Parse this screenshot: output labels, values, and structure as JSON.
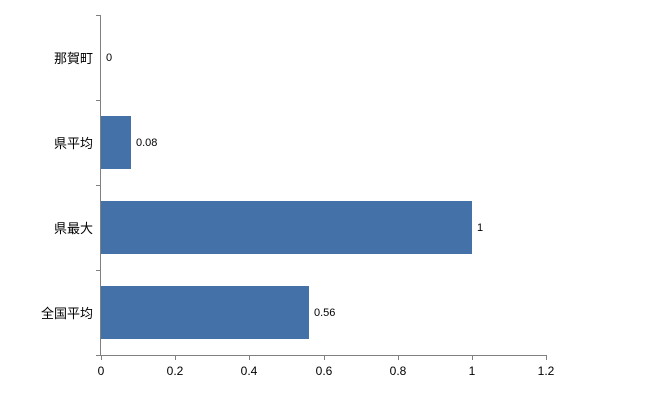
{
  "chart_data": {
    "type": "bar",
    "orientation": "horizontal",
    "title": "",
    "xlabel": "",
    "ylabel": "",
    "categories": [
      "那賀町",
      "県平均",
      "県最大",
      "全国平均"
    ],
    "values": [
      0,
      0.08,
      1,
      0.56
    ],
    "value_labels": [
      "0",
      "0.08",
      "1",
      "0.56"
    ],
    "x_tick_values": [
      0,
      0.2,
      0.4,
      0.6,
      0.8,
      1,
      1.2
    ],
    "x_tick_labels": [
      "0",
      "0.2",
      "0.4",
      "0.6",
      "0.8",
      "1",
      "1.2"
    ],
    "xlim": [
      0,
      1.2
    ],
    "grid": false,
    "legend": "none",
    "bar_color": "#4472a8",
    "axis_color": "#808080",
    "text_color": "#000000"
  }
}
